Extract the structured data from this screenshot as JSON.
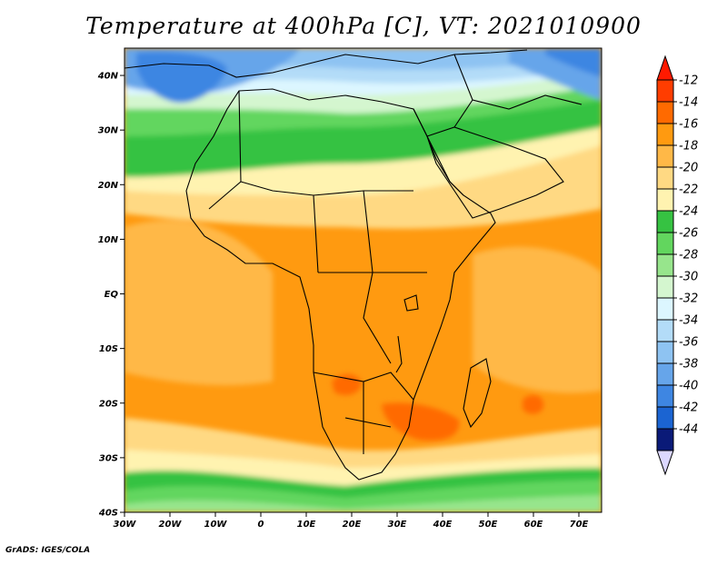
{
  "title": "Temperature at 400hPa [C], VT: 2021010900",
  "credit": "GrADS: IGES/COLA",
  "map": {
    "projection": "latlon",
    "lon_range": [
      -30,
      75
    ],
    "lat_range": [
      -40,
      45
    ],
    "lon_ticks": [
      {
        "value": -30,
        "label": "30W"
      },
      {
        "value": -20,
        "label": "20W"
      },
      {
        "value": -10,
        "label": "10W"
      },
      {
        "value": 0,
        "label": "0"
      },
      {
        "value": 10,
        "label": "10E"
      },
      {
        "value": 20,
        "label": "20E"
      },
      {
        "value": 30,
        "label": "30E"
      },
      {
        "value": 40,
        "label": "40E"
      },
      {
        "value": 50,
        "label": "50E"
      },
      {
        "value": 60,
        "label": "60E"
      },
      {
        "value": 70,
        "label": "70E"
      }
    ],
    "lat_ticks": [
      {
        "value": 40,
        "label": "40N"
      },
      {
        "value": 30,
        "label": "30N"
      },
      {
        "value": 20,
        "label": "20N"
      },
      {
        "value": 10,
        "label": "10N"
      },
      {
        "value": 0,
        "label": "EQ"
      },
      {
        "value": -10,
        "label": "10S"
      },
      {
        "value": -20,
        "label": "20S"
      },
      {
        "value": -30,
        "label": "30S"
      },
      {
        "value": -40,
        "label": "40S"
      }
    ]
  },
  "colorbar": {
    "levels": [
      {
        "value": "-12",
        "color": "#ff3d00"
      },
      {
        "value": "-14",
        "color": "#ff6a00"
      },
      {
        "value": "-16",
        "color": "#ff9a10"
      },
      {
        "value": "-18",
        "color": "#ffb847"
      },
      {
        "value": "-20",
        "color": "#ffd983"
      },
      {
        "value": "-22",
        "color": "#fff3b0"
      },
      {
        "value": "-24",
        "color": "#36c242"
      },
      {
        "value": "-26",
        "color": "#62d65e"
      },
      {
        "value": "-28",
        "color": "#97e58c"
      },
      {
        "value": "-30",
        "color": "#d4f6cf"
      },
      {
        "value": "-32",
        "color": "#dcf6ff"
      },
      {
        "value": "-34",
        "color": "#b3dcf8"
      },
      {
        "value": "-36",
        "color": "#8ec3f2"
      },
      {
        "value": "-38",
        "color": "#66a5ea"
      },
      {
        "value": "-40",
        "color": "#3e86e2"
      },
      {
        "value": "-42",
        "color": "#1b64d2"
      },
      {
        "value": "-44",
        "color": "#0c3db0"
      }
    ],
    "top_triangle_color": "#ff1a00",
    "bottom_triangle_color": "#0a1a78",
    "bottom_cap_color": "#dcd8ff"
  },
  "field_colors": {
    "warm_core": "#ff6a00",
    "warm": "#ff9a10",
    "mid": "#ffb847",
    "light": "#ffd983",
    "pale": "#fff3b0",
    "green": "#36c242",
    "green2": "#62d65e",
    "green3": "#97e58c",
    "green4": "#d4f6cf",
    "cyan": "#dcf6ff",
    "blue1": "#b3dcf8",
    "blue2": "#8ec3f2",
    "blue3": "#66a5ea",
    "blue4": "#3e86e2",
    "blue5": "#1b64d2"
  }
}
